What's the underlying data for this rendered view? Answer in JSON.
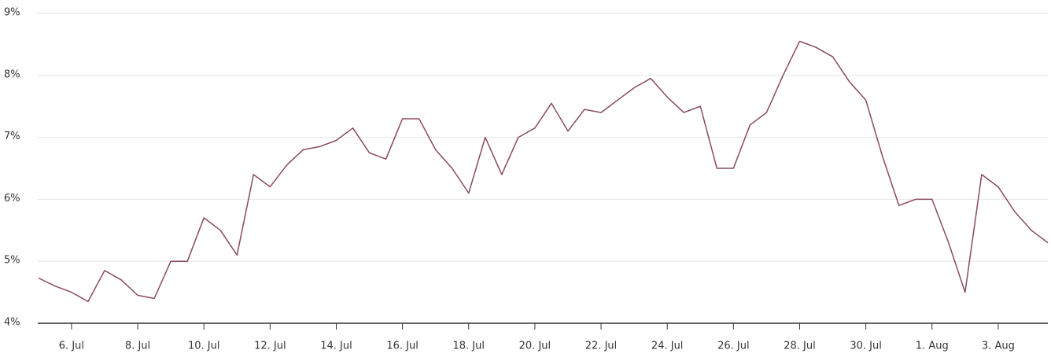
{
  "chart_data": {
    "type": "line",
    "x": [
      5,
      5.5,
      6,
      6.5,
      7,
      7.5,
      8,
      8.5,
      9,
      9.5,
      10,
      10.5,
      11,
      11.5,
      12,
      12.5,
      13,
      13.5,
      14,
      14.5,
      15,
      15.5,
      16,
      16.5,
      17,
      17.5,
      18,
      18.5,
      19,
      19.5,
      20,
      20.5,
      21,
      21.5,
      22,
      22.5,
      23,
      23.5,
      24,
      24.5,
      25,
      25.5,
      26,
      26.5,
      27,
      27.5,
      28,
      28.5,
      29,
      29.5,
      30,
      30.5,
      31,
      31.5,
      32,
      32.5,
      33,
      33.5,
      34,
      34.5,
      35,
      35.5
    ],
    "values": [
      4.73,
      4.6,
      4.5,
      4.35,
      4.85,
      4.7,
      4.45,
      4.4,
      5.0,
      5.0,
      5.7,
      5.5,
      5.1,
      6.4,
      6.2,
      6.55,
      6.8,
      6.85,
      6.95,
      7.15,
      6.75,
      6.65,
      7.3,
      7.3,
      6.8,
      6.5,
      6.1,
      7.0,
      6.4,
      7.0,
      7.15,
      7.55,
      7.1,
      7.45,
      7.4,
      7.6,
      7.8,
      7.95,
      7.65,
      7.4,
      7.5,
      6.5,
      6.5,
      7.2,
      7.4,
      8.0,
      8.55,
      8.45,
      8.3,
      7.9,
      7.6,
      6.7,
      5.9,
      6.0,
      6.0,
      5.3,
      4.5,
      6.4,
      6.2,
      5.8,
      5.5,
      5.3
    ],
    "color": "#8a4a62",
    "xlim": [
      4.98,
      35.5
    ],
    "xticks": [
      {
        "value": 6,
        "label": "6. Jul"
      },
      {
        "value": 8,
        "label": "8. Jul"
      },
      {
        "value": 10,
        "label": "10. Jul"
      },
      {
        "value": 12,
        "label": "12. Jul"
      },
      {
        "value": 14,
        "label": "14. Jul"
      },
      {
        "value": 16,
        "label": "16. Jul"
      },
      {
        "value": 18,
        "label": "18. Jul"
      },
      {
        "value": 20,
        "label": "20. Jul"
      },
      {
        "value": 22,
        "label": "22. Jul"
      },
      {
        "value": 24,
        "label": "24. Jul"
      },
      {
        "value": 26,
        "label": "26. Jul"
      },
      {
        "value": 28,
        "label": "28. Jul"
      },
      {
        "value": 30,
        "label": "30. Jul"
      },
      {
        "value": 32,
        "label": "1. Aug"
      },
      {
        "value": 34,
        "label": "3. Aug"
      }
    ],
    "ylim": [
      4,
      9
    ],
    "yticks": [
      {
        "value": 4,
        "label": "4%"
      },
      {
        "value": 5,
        "label": "5%"
      },
      {
        "value": 6,
        "label": "6%"
      },
      {
        "value": 7,
        "label": "7%"
      },
      {
        "value": 8,
        "label": "8%"
      },
      {
        "value": 9,
        "label": "9%"
      }
    ],
    "grid": true
  }
}
